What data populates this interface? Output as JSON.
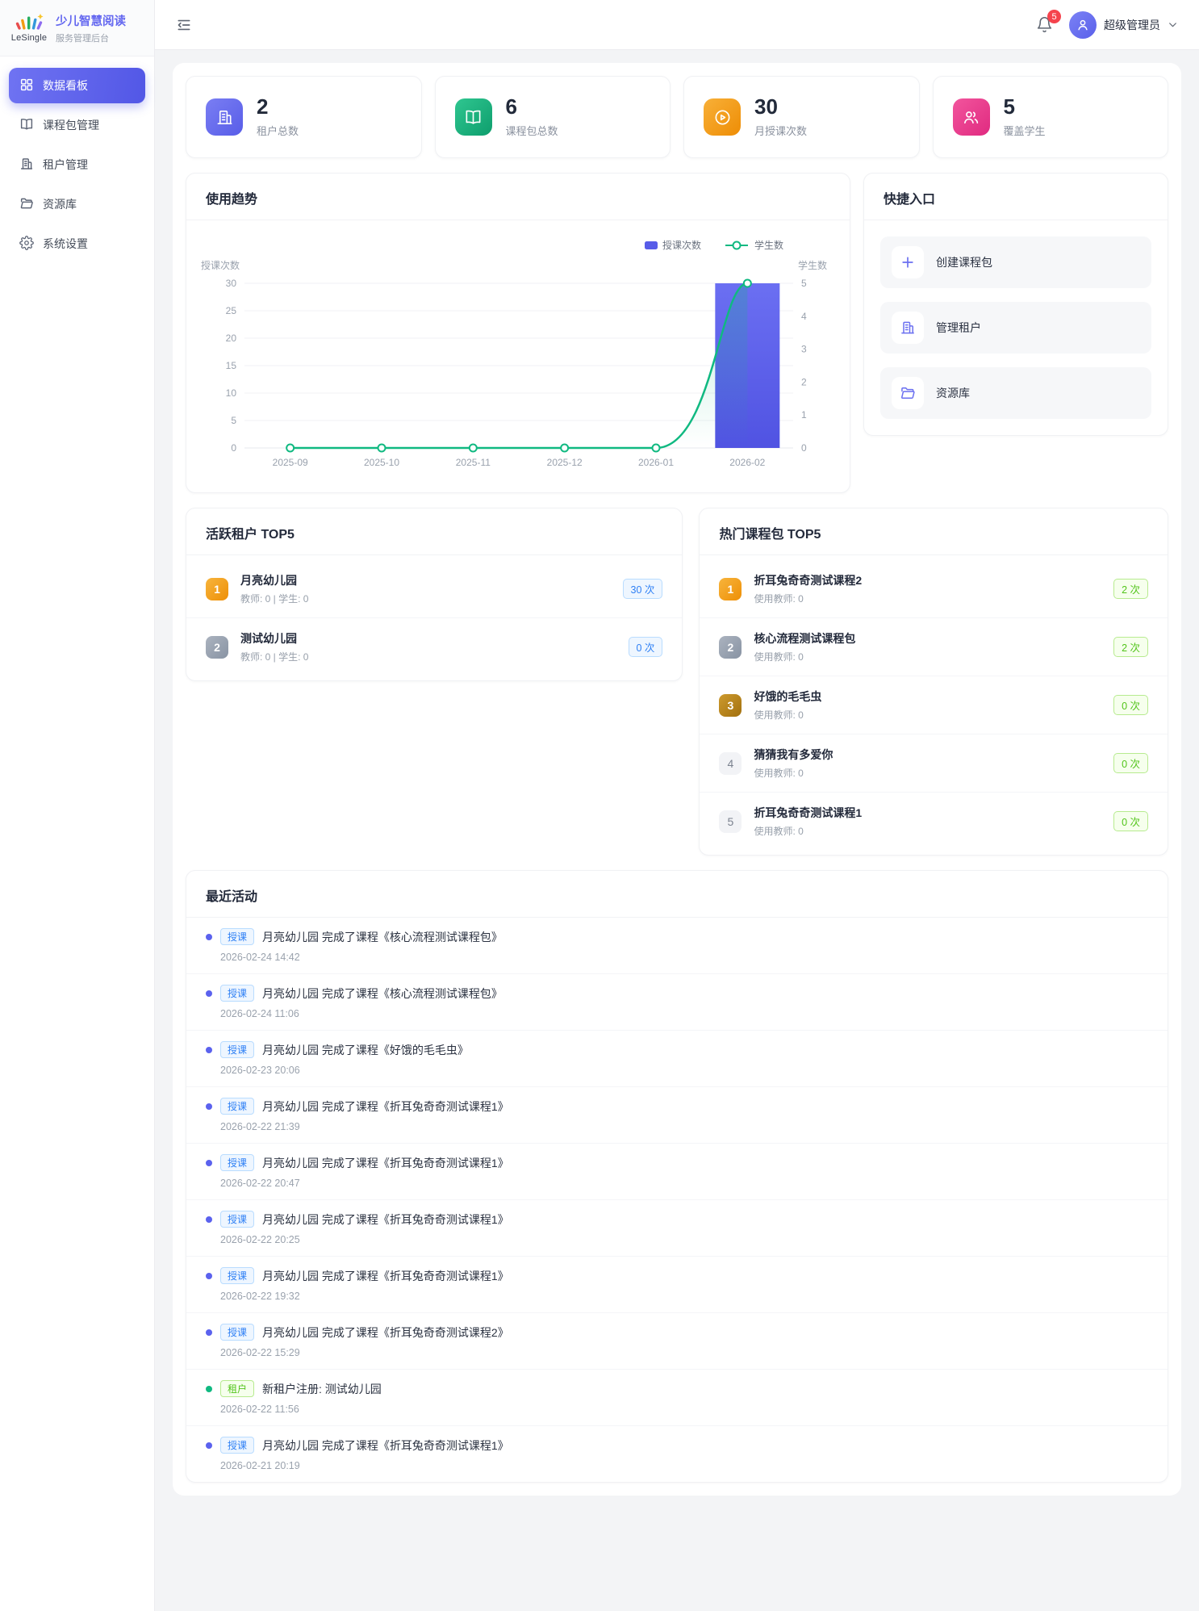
{
  "app": {
    "logo_text": "LeSingle",
    "title": "少儿智慧阅读",
    "subtitle": "服务管理后台"
  },
  "header": {
    "notification_count": "5",
    "username": "超级管理员"
  },
  "sidebar": {
    "items": [
      {
        "label": "数据看板",
        "icon": "dashboard-icon",
        "active": true
      },
      {
        "label": "课程包管理",
        "icon": "book-icon"
      },
      {
        "label": "租户管理",
        "icon": "building-icon"
      },
      {
        "label": "资源库",
        "icon": "folder-icon"
      },
      {
        "label": "系统设置",
        "icon": "settings-icon"
      }
    ]
  },
  "stats": [
    {
      "value": "2",
      "label": "租户总数",
      "icon": "building-icon",
      "color": "#6366f1"
    },
    {
      "value": "6",
      "label": "课程包总数",
      "icon": "book-icon",
      "color": "#10b981"
    },
    {
      "value": "30",
      "label": "月授课次数",
      "icon": "play-circle-icon",
      "color": "#f59e0b"
    },
    {
      "value": "5",
      "label": "覆盖学生",
      "icon": "users-icon",
      "color": "#ec4899"
    }
  ],
  "usage_trend": {
    "title": "使用趋势"
  },
  "chart_data": {
    "type": "bar",
    "categories": [
      "2025-09",
      "2025-10",
      "2025-11",
      "2025-12",
      "2026-01",
      "2026-02"
    ],
    "series": [
      {
        "name": "授课次数",
        "type": "bar",
        "axis": "left",
        "color": "#575ce8",
        "values": [
          0,
          0,
          0,
          0,
          0,
          30
        ]
      },
      {
        "name": "学生数",
        "type": "line",
        "axis": "right",
        "color": "#10b981",
        "values": [
          0,
          0,
          0,
          0,
          0,
          5
        ]
      }
    ],
    "left_axis": {
      "name": "授课次数",
      "min": 0,
      "max": 30,
      "step": 5
    },
    "right_axis": {
      "name": "学生数",
      "min": 0,
      "max": 5,
      "step": 1
    },
    "legend_position": "top-right",
    "grid": true
  },
  "quick_entry": {
    "title": "快捷入口",
    "items": [
      {
        "label": "创建课程包",
        "icon": "plus-icon"
      },
      {
        "label": "管理租户",
        "icon": "building-icon"
      },
      {
        "label": "资源库",
        "icon": "folder-icon"
      }
    ]
  },
  "active_tenants": {
    "title": "活跃租户 TOP5",
    "items": [
      {
        "rank": "1",
        "name": "月亮幼儿园",
        "meta": "教师: 0 | 学生: 0",
        "count": "30 次"
      },
      {
        "rank": "2",
        "name": "测试幼儿园",
        "meta": "教师: 0 | 学生: 0",
        "count": "0 次"
      }
    ]
  },
  "hot_courses": {
    "title": "热门课程包 TOP5",
    "items": [
      {
        "rank": "1",
        "name": "折耳兔奇奇测试课程2",
        "meta": "使用教师: 0",
        "count": "2 次"
      },
      {
        "rank": "2",
        "name": "核心流程测试课程包",
        "meta": "使用教师: 0",
        "count": "2 次"
      },
      {
        "rank": "3",
        "name": "好饿的毛毛虫",
        "meta": "使用教师: 0",
        "count": "0 次"
      },
      {
        "rank": "4",
        "name": "猜猜我有多爱你",
        "meta": "使用教师: 0",
        "count": "0 次"
      },
      {
        "rank": "5",
        "name": "折耳兔奇奇测试课程1",
        "meta": "使用教师: 0",
        "count": "0 次"
      }
    ]
  },
  "recent_activity": {
    "title": "最近活动",
    "items": [
      {
        "type": "course",
        "badge": "授课",
        "text": "月亮幼儿园 完成了课程《核心流程测试课程包》",
        "time": "2026-02-24 14:42"
      },
      {
        "type": "course",
        "badge": "授课",
        "text": "月亮幼儿园 完成了课程《核心流程测试课程包》",
        "time": "2026-02-24 11:06"
      },
      {
        "type": "course",
        "badge": "授课",
        "text": "月亮幼儿园 完成了课程《好饿的毛毛虫》",
        "time": "2026-02-23 20:06"
      },
      {
        "type": "course",
        "badge": "授课",
        "text": "月亮幼儿园 完成了课程《折耳兔奇奇测试课程1》",
        "time": "2026-02-22 21:39"
      },
      {
        "type": "course",
        "badge": "授课",
        "text": "月亮幼儿园 完成了课程《折耳兔奇奇测试课程1》",
        "time": "2026-02-22 20:47"
      },
      {
        "type": "course",
        "badge": "授课",
        "text": "月亮幼儿园 完成了课程《折耳兔奇奇测试课程1》",
        "time": "2026-02-22 20:25"
      },
      {
        "type": "course",
        "badge": "授课",
        "text": "月亮幼儿园 完成了课程《折耳兔奇奇测试课程1》",
        "time": "2026-02-22 19:32"
      },
      {
        "type": "course",
        "badge": "授课",
        "text": "月亮幼儿园 完成了课程《折耳兔奇奇测试课程2》",
        "time": "2026-02-22 15:29"
      },
      {
        "type": "tenant",
        "badge": "租户",
        "text": "新租户注册: 测试幼儿园",
        "time": "2026-02-22 11:56"
      },
      {
        "type": "course",
        "badge": "授课",
        "text": "月亮幼儿园 完成了课程《折耳兔奇奇测试课程1》",
        "time": "2026-02-21 20:19"
      }
    ]
  }
}
